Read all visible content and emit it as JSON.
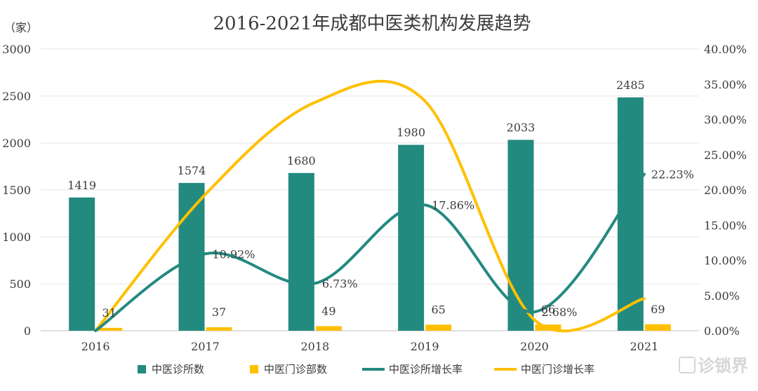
{
  "chart_data": {
    "type": "bar",
    "title": "2016-2021年成都中医类机构发展趋势",
    "y_unit_label": "（家）",
    "categories": [
      "2016",
      "2017",
      "2018",
      "2019",
      "2020",
      "2021"
    ],
    "left_axis": {
      "min": 0,
      "max": 3000,
      "step": 500,
      "ticks": [
        "0",
        "500",
        "1000",
        "1500",
        "2000",
        "2500",
        "3000"
      ]
    },
    "right_axis": {
      "min": 0,
      "max": 40,
      "step": 5,
      "ticks": [
        "0.00%",
        "5.00%",
        "10.00%",
        "15.00%",
        "20.00%",
        "25.00%",
        "30.00%",
        "35.00%",
        "40.00%"
      ]
    },
    "grid": true,
    "legend_position": "bottom",
    "series": [
      {
        "name": "中医诊所数",
        "type": "bar",
        "axis": "left",
        "color": "#238a80",
        "values": [
          1419,
          1574,
          1680,
          1980,
          2033,
          2485
        ],
        "labels": [
          "1419",
          "1574",
          "1680",
          "1980",
          "2033",
          "2485"
        ]
      },
      {
        "name": "中医门诊部数",
        "type": "bar",
        "axis": "left",
        "color": "#ffc000",
        "values": [
          31,
          37,
          49,
          65,
          66,
          69
        ],
        "labels": [
          "31",
          "37",
          "49",
          "65",
          "66",
          "69"
        ]
      },
      {
        "name": "中医诊所增长率",
        "type": "line",
        "axis": "right",
        "color": "#238a80",
        "values": [
          0,
          10.92,
          6.73,
          17.86,
          2.68,
          22.23
        ],
        "labels": [
          "",
          "10.92%",
          "6.73%",
          "17.86%",
          "2.68%",
          "22.23%"
        ]
      },
      {
        "name": "中医门诊增长率",
        "type": "line",
        "axis": "right",
        "color": "#ffc000",
        "values": [
          0,
          19.35,
          32.43,
          32.65,
          1.54,
          4.55
        ],
        "labels": [
          "",
          "",
          "",
          "",
          "",
          ""
        ]
      }
    ]
  },
  "watermark": "诊锁界"
}
